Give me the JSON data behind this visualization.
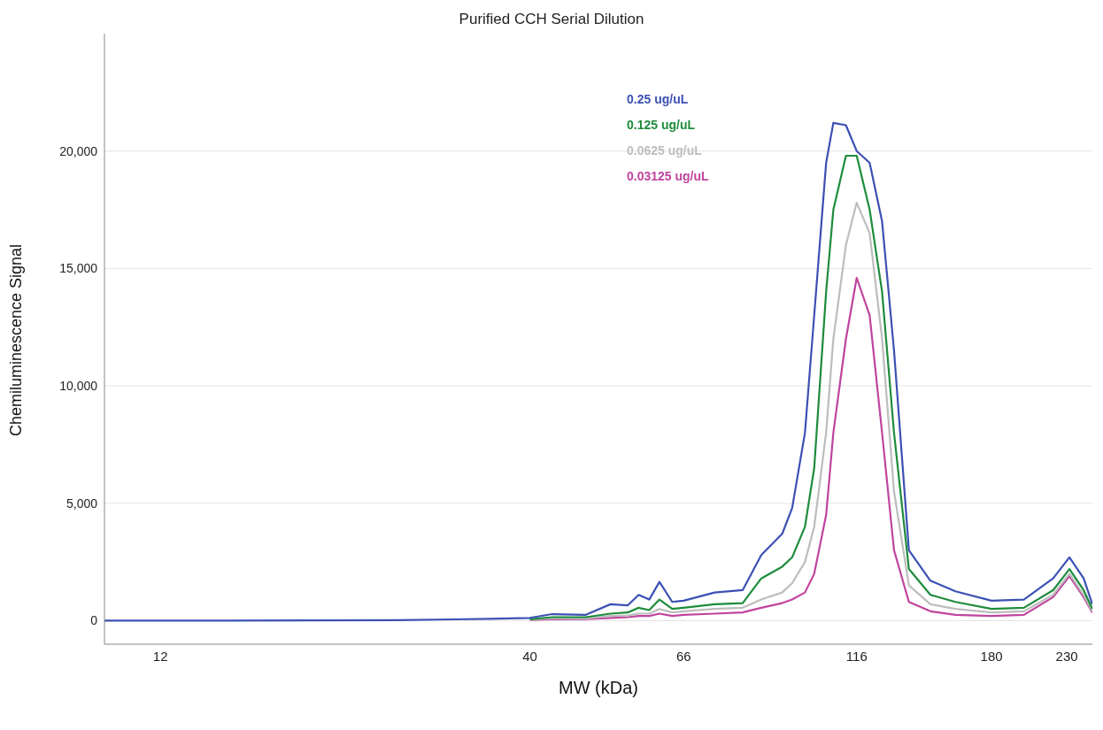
{
  "chart_data": {
    "type": "line",
    "title": "Purified CCH Serial Dilution",
    "xlabel": "MW (kDa)",
    "ylabel": "Chemiluminescence Signal",
    "x": [
      10,
      12,
      26,
      35,
      40,
      43,
      48,
      52,
      55,
      57,
      59,
      61,
      63.6,
      66,
      73,
      80,
      85,
      91,
      94,
      98,
      101,
      105,
      107.5,
      112,
      116,
      121,
      126,
      131,
      137.5,
      147.5,
      160,
      180,
      200,
      220,
      232,
      243,
      250
    ],
    "series": [
      {
        "name": "0.25 ug/uL",
        "color": "#3c50b4",
        "values": [
          0,
          0,
          20,
          80,
          120,
          280,
          250,
          700,
          650,
          1100,
          900,
          1650,
          800,
          850,
          1200,
          1300,
          2800,
          3700,
          4800,
          8000,
          13000,
          19500,
          21200,
          21100,
          20000,
          19500,
          17000,
          11500,
          3000,
          1700,
          1250,
          850,
          900,
          1800,
          2700,
          1800,
          700
        ]
      },
      {
        "name": "0.125 ug/uL",
        "color": "#1e8c3c",
        "values": [
          null,
          null,
          null,
          null,
          60,
          150,
          150,
          300,
          350,
          550,
          450,
          900,
          500,
          550,
          700,
          750,
          1800,
          2300,
          2700,
          4000,
          6500,
          14000,
          17500,
          19800,
          19800,
          17500,
          14000,
          8000,
          2200,
          1100,
          800,
          500,
          550,
          1300,
          2200,
          1300,
          500
        ]
      },
      {
        "name": "0.0625 ug/uL",
        "color": "#bdbdbd",
        "values": [
          null,
          null,
          null,
          null,
          50,
          100,
          100,
          200,
          220,
          300,
          300,
          500,
          350,
          400,
          500,
          550,
          900,
          1200,
          1600,
          2500,
          4000,
          8000,
          12000,
          16000,
          17800,
          16500,
          12000,
          5500,
          1500,
          700,
          500,
          350,
          400,
          1100,
          2000,
          1100,
          400
        ]
      },
      {
        "name": "0.03125 ug/uL",
        "color": "#c0449e",
        "values": [
          null,
          null,
          null,
          null,
          30,
          60,
          70,
          120,
          150,
          200,
          200,
          300,
          200,
          250,
          300,
          350,
          550,
          750,
          900,
          1200,
          2000,
          4500,
          8000,
          12000,
          14600,
          13000,
          8000,
          3000,
          800,
          400,
          250,
          200,
          250,
          1000,
          1900,
          1000,
          350
        ]
      }
    ],
    "log": "x",
    "xlim": [
      10,
      250
    ],
    "xticks": [
      12,
      40,
      66,
      116,
      180,
      230
    ],
    "ylim": [
      -1000,
      25000
    ],
    "yticks": [
      {
        "value": 0,
        "label": "0"
      },
      {
        "value": 5000,
        "label": "5,000"
      },
      {
        "value": 10000,
        "label": "10,000"
      },
      {
        "value": 15000,
        "label": "15,000"
      },
      {
        "value": 20000,
        "label": "20,000"
      }
    ],
    "grid": "y",
    "legend": "top",
    "marker": "none",
    "line_style": "solid"
  }
}
